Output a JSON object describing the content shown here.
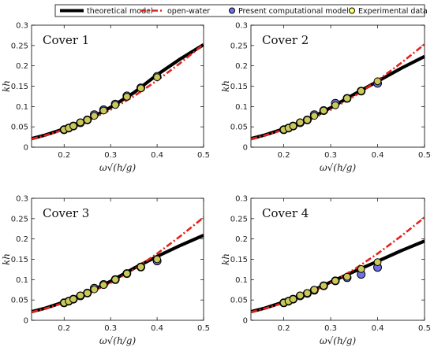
{
  "legend": {
    "entries": [
      {
        "key": "theoretical",
        "label": "theoretical model",
        "style": "thick-line",
        "color": "#000000"
      },
      {
        "key": "openwater",
        "label": "open-water",
        "style": "dash-dot",
        "color": "#e3221b"
      },
      {
        "key": "computational",
        "label": "Present computational model",
        "style": "marker",
        "fill": "#6f6fe8",
        "edge": "#000000"
      },
      {
        "key": "experimental",
        "label": "Experimental data",
        "style": "marker",
        "fill": "#ffff66",
        "edge": "#000000"
      }
    ]
  },
  "chart_data": [
    {
      "type": "line",
      "title": "Cover 1",
      "xlabel": "ω√(h/g)",
      "ylabel": "kh",
      "xlim": [
        0.13,
        0.5
      ],
      "ylim": [
        0,
        0.3
      ],
      "xticks": [
        "0.2",
        "0.3",
        "0.4",
        "0.5"
      ],
      "yticks": [
        "0",
        "0.05",
        "0.1",
        "0.15",
        "0.2",
        "0.25",
        "0.3"
      ],
      "series": [
        {
          "name": "theoretical model",
          "x": [
            0.13,
            0.16,
            0.2,
            0.25,
            0.3,
            0.35,
            0.4,
            0.45,
            0.5
          ],
          "y": [
            0.021,
            0.03,
            0.045,
            0.067,
            0.098,
            0.134,
            0.178,
            0.217,
            0.252
          ]
        },
        {
          "name": "open-water",
          "x": [
            0.13,
            0.16,
            0.2,
            0.25,
            0.3,
            0.35,
            0.4,
            0.45,
            0.5
          ],
          "y": [
            0.02,
            0.029,
            0.043,
            0.064,
            0.092,
            0.125,
            0.164,
            0.207,
            0.253
          ]
        },
        {
          "name": "Present computational model",
          "x": [
            0.2,
            0.21,
            0.22,
            0.235,
            0.25,
            0.265,
            0.285,
            0.31,
            0.335,
            0.365,
            0.4
          ],
          "y": [
            0.043,
            0.047,
            0.052,
            0.06,
            0.067,
            0.08,
            0.092,
            0.106,
            0.126,
            0.146,
            0.174
          ]
        },
        {
          "name": "Experimental data",
          "x": [
            0.2,
            0.21,
            0.22,
            0.235,
            0.25,
            0.265,
            0.285,
            0.31,
            0.335,
            0.365,
            0.4
          ],
          "y": [
            0.043,
            0.047,
            0.052,
            0.061,
            0.067,
            0.077,
            0.09,
            0.104,
            0.124,
            0.145,
            0.172
          ]
        }
      ]
    },
    {
      "type": "line",
      "title": "Cover 2",
      "xlabel": "ω√(h/g)",
      "ylabel": "kh",
      "xlim": [
        0.13,
        0.5
      ],
      "ylim": [
        0,
        0.3
      ],
      "xticks": [
        "0.2",
        "0.3",
        "0.4",
        "0.5"
      ],
      "yticks": [
        "0",
        "0.05",
        "0.1",
        "0.15",
        "0.2",
        "0.25",
        "0.3"
      ],
      "series": [
        {
          "name": "theoretical model",
          "x": [
            0.13,
            0.16,
            0.2,
            0.25,
            0.3,
            0.35,
            0.4,
            0.45,
            0.5
          ],
          "y": [
            0.021,
            0.03,
            0.045,
            0.067,
            0.097,
            0.13,
            0.162,
            0.194,
            0.223
          ]
        },
        {
          "name": "open-water",
          "x": [
            0.13,
            0.16,
            0.2,
            0.25,
            0.3,
            0.35,
            0.4,
            0.45,
            0.5
          ],
          "y": [
            0.02,
            0.029,
            0.043,
            0.064,
            0.092,
            0.125,
            0.164,
            0.207,
            0.253
          ]
        },
        {
          "name": "Present computational model",
          "x": [
            0.2,
            0.21,
            0.22,
            0.235,
            0.25,
            0.265,
            0.285,
            0.31,
            0.335,
            0.365,
            0.4
          ],
          "y": [
            0.043,
            0.047,
            0.052,
            0.06,
            0.067,
            0.08,
            0.09,
            0.108,
            0.12,
            0.138,
            0.157
          ]
        },
        {
          "name": "Experimental data",
          "x": [
            0.2,
            0.21,
            0.22,
            0.235,
            0.25,
            0.265,
            0.285,
            0.31,
            0.335,
            0.365,
            0.4
          ],
          "y": [
            0.043,
            0.047,
            0.052,
            0.061,
            0.067,
            0.077,
            0.09,
            0.103,
            0.12,
            0.138,
            0.162
          ]
        }
      ]
    },
    {
      "type": "line",
      "title": "Cover 3",
      "xlabel": "ω√(h/g)",
      "ylabel": "kh",
      "xlim": [
        0.13,
        0.5
      ],
      "ylim": [
        0,
        0.3
      ],
      "xticks": [
        "0.2",
        "0.3",
        "0.4",
        "0.5"
      ],
      "yticks": [
        "0",
        "0.05",
        "0.1",
        "0.15",
        "0.2",
        "0.25",
        "0.3"
      ],
      "series": [
        {
          "name": "theoretical model",
          "x": [
            0.13,
            0.16,
            0.2,
            0.25,
            0.3,
            0.35,
            0.4,
            0.45,
            0.5
          ],
          "y": [
            0.021,
            0.03,
            0.045,
            0.067,
            0.096,
            0.128,
            0.157,
            0.184,
            0.209
          ]
        },
        {
          "name": "open-water",
          "x": [
            0.13,
            0.16,
            0.2,
            0.25,
            0.3,
            0.35,
            0.4,
            0.45,
            0.5
          ],
          "y": [
            0.02,
            0.029,
            0.043,
            0.064,
            0.092,
            0.125,
            0.164,
            0.207,
            0.253
          ]
        },
        {
          "name": "Present computational model",
          "x": [
            0.2,
            0.21,
            0.22,
            0.235,
            0.25,
            0.265,
            0.285,
            0.31,
            0.335,
            0.365,
            0.4
          ],
          "y": [
            0.043,
            0.047,
            0.052,
            0.06,
            0.067,
            0.079,
            0.088,
            0.1,
            0.115,
            0.131,
            0.146
          ]
        },
        {
          "name": "Experimental data",
          "x": [
            0.2,
            0.21,
            0.22,
            0.235,
            0.25,
            0.265,
            0.285,
            0.31,
            0.335,
            0.365,
            0.4
          ],
          "y": [
            0.043,
            0.047,
            0.052,
            0.061,
            0.067,
            0.076,
            0.087,
            0.1,
            0.115,
            0.131,
            0.15
          ]
        }
      ]
    },
    {
      "type": "line",
      "title": "Cover 4",
      "xlabel": "ω√(h/g)",
      "ylabel": "kh",
      "xlim": [
        0.13,
        0.5
      ],
      "ylim": [
        0,
        0.3
      ],
      "xticks": [
        "0.2",
        "0.3",
        "0.4",
        "0.5"
      ],
      "yticks": [
        "0",
        "0.05",
        "0.1",
        "0.15",
        "0.2",
        "0.25",
        "0.3"
      ],
      "series": [
        {
          "name": "theoretical model",
          "x": [
            0.13,
            0.16,
            0.2,
            0.25,
            0.3,
            0.35,
            0.4,
            0.45,
            0.5
          ],
          "y": [
            0.021,
            0.03,
            0.045,
            0.067,
            0.094,
            0.12,
            0.145,
            0.171,
            0.195
          ]
        },
        {
          "name": "open-water",
          "x": [
            0.13,
            0.16,
            0.2,
            0.25,
            0.3,
            0.35,
            0.4,
            0.45,
            0.5
          ],
          "y": [
            0.02,
            0.029,
            0.043,
            0.064,
            0.092,
            0.125,
            0.164,
            0.207,
            0.253
          ]
        },
        {
          "name": "Present computational model",
          "x": [
            0.2,
            0.21,
            0.22,
            0.235,
            0.25,
            0.265,
            0.285,
            0.31,
            0.335,
            0.365,
            0.4
          ],
          "y": [
            0.043,
            0.047,
            0.052,
            0.06,
            0.066,
            0.074,
            0.085,
            0.097,
            0.105,
            0.113,
            0.13
          ]
        },
        {
          "name": "Experimental data",
          "x": [
            0.2,
            0.21,
            0.22,
            0.235,
            0.25,
            0.265,
            0.285,
            0.31,
            0.335,
            0.365,
            0.4
          ],
          "y": [
            0.043,
            0.047,
            0.052,
            0.061,
            0.067,
            0.075,
            0.085,
            0.097,
            0.107,
            0.126,
            0.143
          ]
        }
      ]
    }
  ]
}
